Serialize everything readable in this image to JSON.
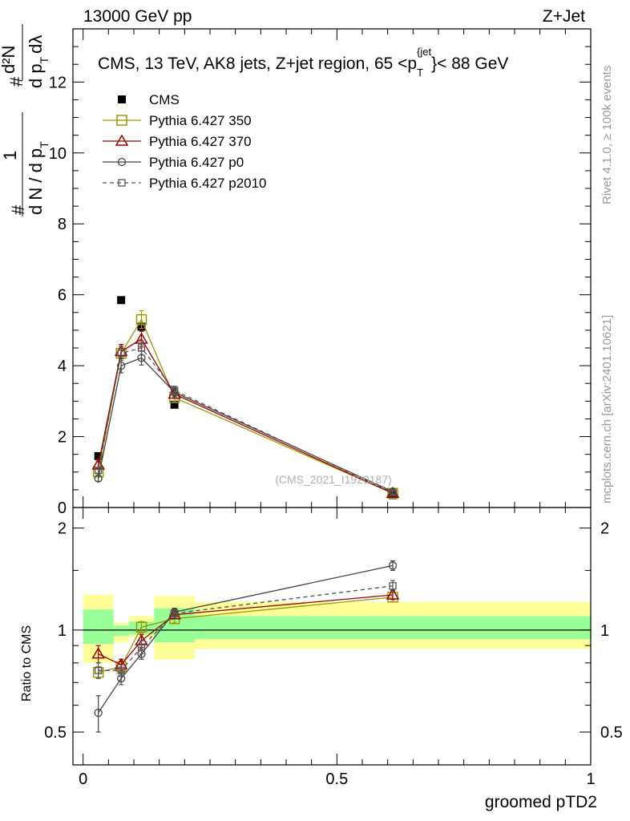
{
  "header": {
    "left": "13000 GeV pp",
    "right": "Z+Jet"
  },
  "side_labels": {
    "rivet": "Rivet 4.1.0, ≥ 100k events",
    "mcplots": "mcplots.cern.ch [arXiv:2401.10621]"
  },
  "chart_data": [
    {
      "type": "scatter",
      "panel": "main",
      "title": "CMS, 13 TeV, AK8 jets, Z+jet region, 65 <p_T^{jet}< 88 GeV",
      "title_parts": {
        "pre": "CMS, 13 TeV, AK8 jets, Z+jet region, 65 <p",
        "sub": "T",
        "sup": "{jet",
        "post": "}< 88 GeV"
      },
      "watermark": "(CMS_2021_I1920187)",
      "ylabel": "1/N dN/dp_T d²N/dp_T dλ",
      "ylabel_parts": {
        "hash": "#",
        "one": "1",
        "den_left": "d N / d p",
        "sub_t": "T",
        "num_right": "d²N",
        "den_right": "d p",
        "dlambda": "dλ"
      },
      "xlim": [
        -0.02,
        1.0
      ],
      "ylim": [
        0,
        13.5
      ],
      "y_ticks": [
        "0",
        "2",
        "4",
        "6",
        "8",
        "10",
        "12"
      ],
      "legend_position": "top-left",
      "x": [
        0.03,
        0.075,
        0.115,
        0.18,
        0.61
      ],
      "series": [
        {
          "name": "CMS",
          "color": "#000000",
          "marker": "filled-square",
          "line": "none",
          "values": [
            1.45,
            5.85,
            5.1,
            2.9,
            0.35
          ]
        },
        {
          "name": "Pythia 6.427 350",
          "color": "#999900",
          "marker": "open-square",
          "line": "solid",
          "values": [
            1.0,
            4.35,
            5.3,
            3.1,
            0.4
          ],
          "errors": [
            0.08,
            0.2,
            0.25,
            0.12,
            0.05
          ]
        },
        {
          "name": "Pythia 6.427 370",
          "color": "#990000",
          "marker": "open-triangle",
          "line": "solid",
          "values": [
            1.2,
            4.4,
            4.75,
            3.2,
            0.4
          ],
          "errors": [
            0.1,
            0.2,
            0.22,
            0.12,
            0.05
          ]
        },
        {
          "name": "Pythia 6.427 p0",
          "color": "#444444",
          "marker": "open-circle",
          "line": "solid",
          "values": [
            0.82,
            4.0,
            4.22,
            3.25,
            0.45
          ],
          "errors": [
            0.08,
            0.2,
            0.2,
            0.12,
            0.05
          ]
        },
        {
          "name": "Pythia 6.427 p2010",
          "color": "#555555",
          "marker": "open-square-small",
          "line": "dashed",
          "values": [
            1.05,
            4.35,
            4.5,
            3.3,
            0.42
          ],
          "errors": [
            0.08,
            0.2,
            0.2,
            0.12,
            0.05
          ]
        }
      ]
    },
    {
      "type": "scatter",
      "panel": "ratio",
      "ylabel": "Ratio to CMS",
      "xlabel": "groomed pTD2",
      "xlim": [
        -0.02,
        1.0
      ],
      "ylim": [
        0.4,
        2.3
      ],
      "log_y": true,
      "y_ticks": [
        "0.5",
        "1",
        "2"
      ],
      "x_ticks": [
        "0",
        "0.5",
        "1"
      ],
      "bins": [
        {
          "lo": 0.0,
          "hi": 0.06,
          "yellow": [
            0.8,
            1.27
          ],
          "green": [
            0.91,
            1.15
          ]
        },
        {
          "lo": 0.06,
          "hi": 0.09,
          "yellow": [
            0.92,
            1.05
          ],
          "green": [
            0.96,
            1.03
          ]
        },
        {
          "lo": 0.09,
          "hi": 0.14,
          "yellow": [
            0.95,
            1.1
          ],
          "green": [
            0.97,
            1.06
          ]
        },
        {
          "lo": 0.14,
          "hi": 0.22,
          "yellow": [
            0.82,
            1.26
          ],
          "green": [
            0.92,
            1.16
          ]
        },
        {
          "lo": 0.22,
          "hi": 1.0,
          "yellow": [
            0.88,
            1.21
          ],
          "green": [
            0.94,
            1.1
          ]
        }
      ],
      "x": [
        0.03,
        0.075,
        0.115,
        0.18,
        0.61
      ],
      "series": [
        {
          "name": "Pythia 6.427 350",
          "color": "#999900",
          "marker": "open-square",
          "line": "solid",
          "values": [
            0.75,
            0.78,
            1.02,
            1.08,
            1.25
          ],
          "errors": [
            0.03,
            0.03,
            0.04,
            0.03,
            0.04
          ]
        },
        {
          "name": "Pythia 6.427 370",
          "color": "#990000",
          "marker": "open-triangle",
          "line": "solid",
          "values": [
            0.85,
            0.79,
            0.93,
            1.11,
            1.27
          ],
          "errors": [
            0.05,
            0.03,
            0.04,
            0.03,
            0.04
          ]
        },
        {
          "name": "Pythia 6.427 p0",
          "color": "#444444",
          "marker": "open-circle",
          "line": "solid",
          "values": [
            0.57,
            0.72,
            0.85,
            1.13,
            1.55
          ],
          "errors": [
            0.07,
            0.03,
            0.03,
            0.03,
            0.05
          ]
        },
        {
          "name": "Pythia 6.427 p2010",
          "color": "#555555",
          "marker": "open-square-small",
          "line": "dashed",
          "values": [
            0.76,
            0.76,
            0.89,
            1.12,
            1.35
          ],
          "errors": [
            0.04,
            0.03,
            0.04,
            0.03,
            0.05
          ]
        }
      ]
    }
  ]
}
